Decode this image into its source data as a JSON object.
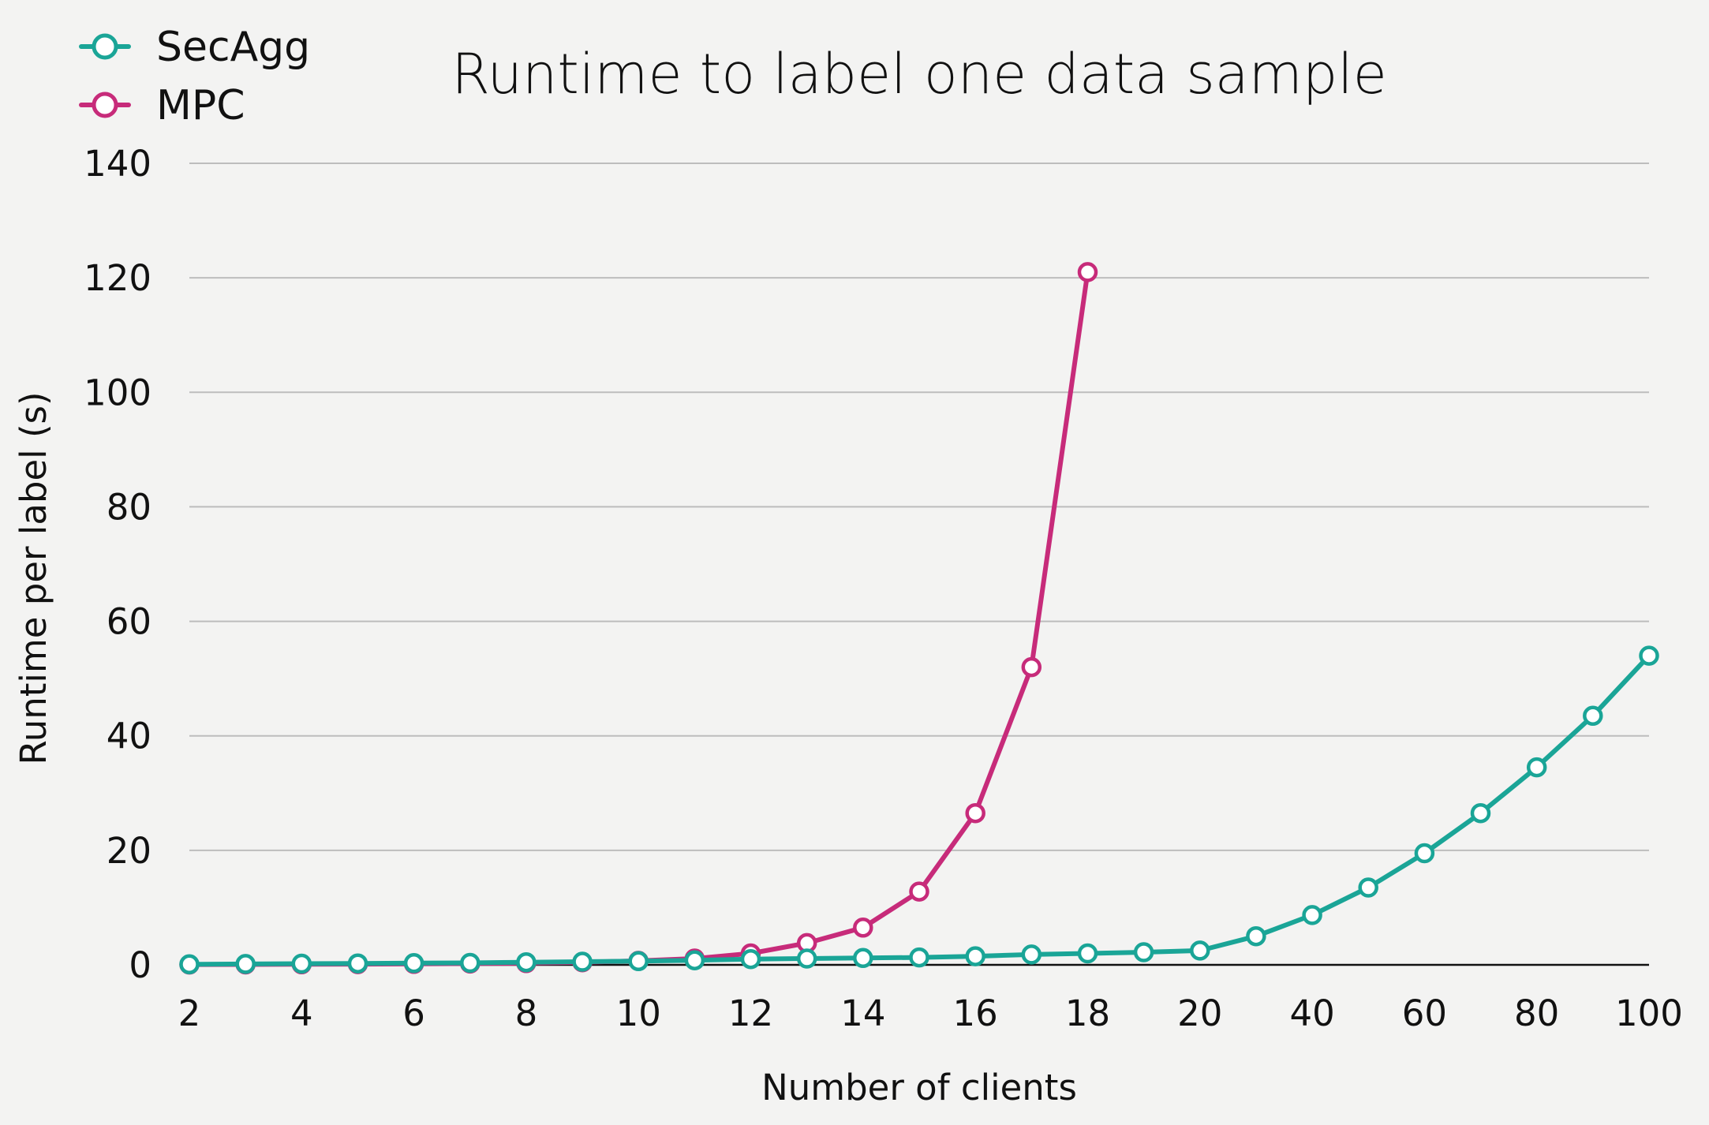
{
  "chart_data": {
    "type": "line",
    "title": "Runtime to label one data sample",
    "xlabel": "Number of clients",
    "ylabel": "Runtime per label (s)",
    "ylim": [
      0,
      140
    ],
    "yticks": [
      "0",
      "20",
      "40",
      "60",
      "80",
      "100",
      "120",
      "140"
    ],
    "categories": [
      "2",
      "3",
      "4",
      "5",
      "6",
      "7",
      "8",
      "9",
      "10",
      "11",
      "12",
      "13",
      "14",
      "15",
      "16",
      "17",
      "18",
      "19",
      "20",
      "30",
      "40",
      "50",
      "60",
      "70",
      "80",
      "90",
      "100"
    ],
    "xtick_labels": [
      "2",
      "4",
      "6",
      "8",
      "10",
      "12",
      "14",
      "16",
      "18",
      "20",
      "40",
      "60",
      "80",
      "100"
    ],
    "grid": true,
    "legend_position": "top-left",
    "series": [
      {
        "name": "SecAgg",
        "color": "#1aa597",
        "values": [
          0.1,
          0.15,
          0.2,
          0.25,
          0.3,
          0.35,
          0.45,
          0.55,
          0.65,
          0.8,
          1.0,
          1.1,
          1.2,
          1.3,
          1.5,
          1.8,
          2.0,
          2.2,
          2.5,
          5.0,
          8.7,
          13.5,
          19.5,
          26.5,
          34.5,
          43.5,
          54.0
        ]
      },
      {
        "name": "MPC",
        "color": "#c72b7a",
        "values": [
          0.05,
          0.07,
          0.1,
          0.13,
          0.17,
          0.22,
          0.3,
          0.45,
          0.7,
          1.1,
          2.0,
          3.8,
          6.5,
          12.8,
          26.5,
          52.0,
          121.0,
          null,
          null,
          null,
          null,
          null,
          null,
          null,
          null,
          null,
          null
        ]
      }
    ]
  }
}
